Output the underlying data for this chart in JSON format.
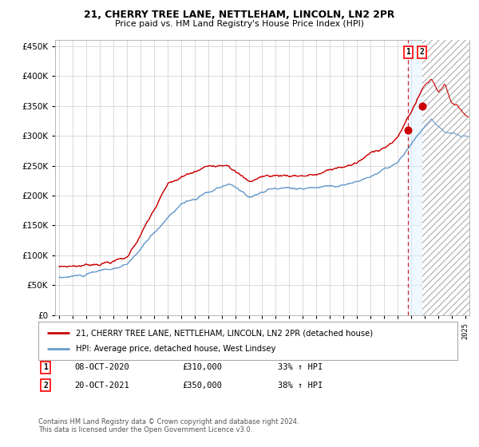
{
  "title": "21, CHERRY TREE LANE, NETTLEHAM, LINCOLN, LN2 2PR",
  "subtitle": "Price paid vs. HM Land Registry's House Price Index (HPI)",
  "red_label": "21, CHERRY TREE LANE, NETTLEHAM, LINCOLN, LN2 2PR (detached house)",
  "blue_label": "HPI: Average price, detached house, West Lindsey",
  "annotation1_date": "08-OCT-2020",
  "annotation1_price": "£310,000",
  "annotation1_hpi": "33% ↑ HPI",
  "annotation2_date": "20-OCT-2021",
  "annotation2_price": "£350,000",
  "annotation2_hpi": "38% ↑ HPI",
  "sale1_year": 2020.78,
  "sale1_value": 310000,
  "sale2_year": 2021.8,
  "sale2_value": 350000,
  "footer": "Contains HM Land Registry data © Crown copyright and database right 2024.\nThis data is licensed under the Open Government Licence v3.0.",
  "ylim": [
    0,
    460000
  ],
  "xlim_start": 1994.7,
  "xlim_end": 2025.3,
  "red_color": "#cc0000",
  "blue_color": "#6699cc",
  "grid_color": "#cccccc",
  "bg_color": "#ffffff"
}
